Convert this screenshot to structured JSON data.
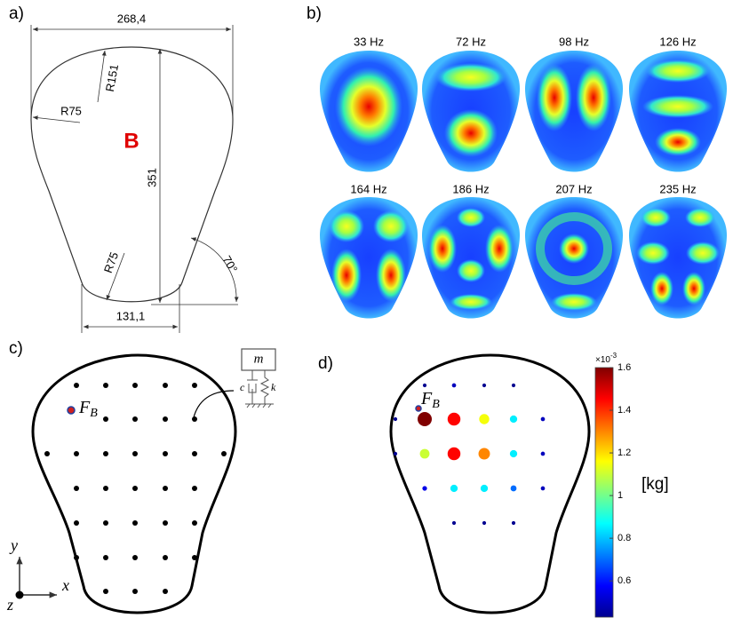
{
  "panel_a": {
    "label": "a)",
    "width_dim": "268,4",
    "top_radius": "R151",
    "side_radius": "R75",
    "height_dim": "351",
    "bottom_radius": "R75",
    "angle": "70°",
    "bottom_dim": "131,1",
    "plate_label": "B"
  },
  "panel_b": {
    "label": "b)",
    "modes": [
      "33 Hz",
      "72 Hz",
      "98 Hz",
      "126 Hz",
      "164 Hz",
      "186 Hz",
      "207 Hz",
      "235 Hz"
    ]
  },
  "panel_c": {
    "label": "c)",
    "force": "F",
    "force_subscript": "B",
    "mass": "m",
    "damper": "c",
    "spring": "k",
    "axis_y": "y",
    "axis_x": "x",
    "axis_z": "z"
  },
  "panel_d": {
    "label": "d)",
    "force": "F",
    "force_subscript": "B",
    "masses": [
      0.45,
      0.5,
      0.45,
      0.45,
      0.45,
      1.6,
      1.45,
      1.15,
      0.85,
      0.5,
      0.45,
      1.1,
      1.45,
      1.3,
      0.85,
      0.5,
      0.55,
      0.85,
      0.85,
      0.7,
      0.5,
      0.45,
      0.45,
      0.45
    ],
    "colorbar": {
      "range": [
        0.43,
        1.6
      ],
      "ticks": [
        0.6,
        0.8,
        1,
        1.2,
        1.4,
        1.6
      ],
      "multiplier": "×10",
      "exponent": "-3",
      "unit": "[kg]"
    }
  }
}
